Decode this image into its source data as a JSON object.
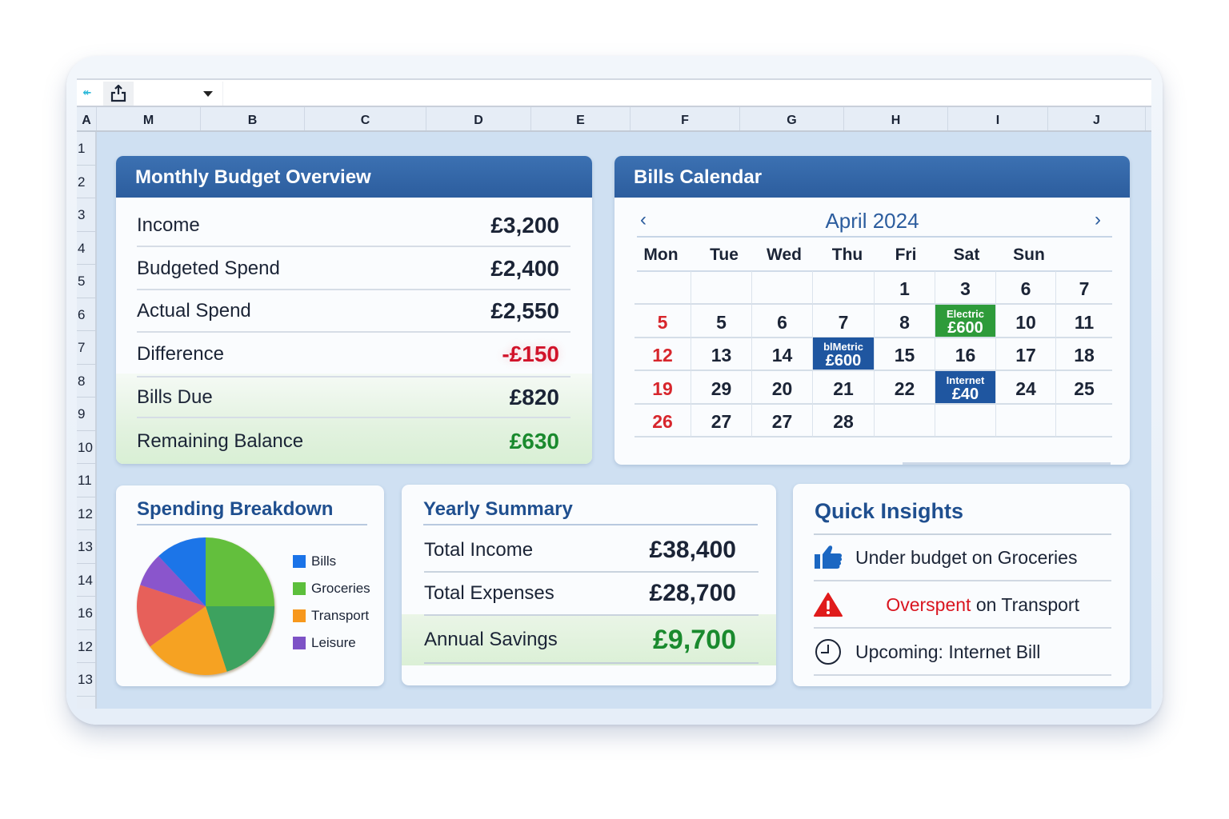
{
  "toolbar": {
    "back_icon": "↞",
    "name_box_value": ""
  },
  "column_headers": [
    "A",
    "M",
    "B",
    "C",
    "D",
    "E",
    "F",
    "G",
    "H",
    "I",
    "J"
  ],
  "row_headers": [
    "1",
    "2",
    "3",
    "4",
    "5",
    "6",
    "7",
    "8",
    "9",
    "10",
    "11",
    "12",
    "13",
    "14",
    "16",
    "12",
    "13"
  ],
  "monthly_overview": {
    "title": "Monthly Budget Overview",
    "rows": [
      {
        "label": "Income",
        "value": "£3,200"
      },
      {
        "label": "Budgeted Spend",
        "value": "£2,400"
      },
      {
        "label": "Actual Spend",
        "value": "£2,550"
      },
      {
        "label": "Difference",
        "value": "-£150"
      },
      {
        "label": "Bills Due",
        "value": "£820"
      },
      {
        "label": "Remaining Balance",
        "value": "£630"
      }
    ]
  },
  "bills_calendar": {
    "title": "Bills Calendar",
    "month_label": "April 2024",
    "prev_label": "‹",
    "next_label": "›",
    "weekdays": [
      "Mon",
      "Tue",
      "Wed",
      "Thu",
      "Fri",
      "Sat",
      "Sun"
    ],
    "weeks": [
      [
        "",
        "",
        "",
        "",
        "1",
        "3",
        "6",
        "7"
      ],
      [
        "5",
        "5",
        "6",
        "7",
        "8",
        "Electric|£600",
        "10",
        "11"
      ],
      [
        "12",
        "13",
        "14",
        "blMetric|£600",
        "15",
        "16",
        "17",
        "18"
      ],
      [
        "19",
        "29",
        "20",
        "21",
        "22",
        "Internet|£40",
        "24",
        "25"
      ],
      [
        "26",
        "27",
        "27",
        "28",
        "",
        "",
        "",
        ""
      ]
    ],
    "events": [
      {
        "name": "Electric",
        "amount": "£600",
        "color": "#2e9b3a"
      },
      {
        "name": "blMetric",
        "amount": "£600",
        "color": "#1f56a0"
      },
      {
        "name": "Internet",
        "amount": "£40",
        "color": "#1f56a0"
      }
    ]
  },
  "spending_breakdown": {
    "title": "Spending Breakdown",
    "legend": [
      {
        "label": "Bills",
        "color": "#1a73e8"
      },
      {
        "label": "Groceries",
        "color": "#5cbf3c"
      },
      {
        "label": "Transport",
        "color": "#f7981d"
      },
      {
        "label": "Leisure",
        "color": "#7d52c6"
      }
    ]
  },
  "chart_data": {
    "type": "pie",
    "title": "Spending Breakdown",
    "categories": [
      "Groceries (light green)",
      "Dark green",
      "Transport",
      "Red",
      "Leisure",
      "Bills"
    ],
    "values": [
      25,
      20,
      20,
      15,
      8,
      12
    ],
    "colors": [
      "#63bf3e",
      "#3ea25e",
      "#f6a223",
      "#e7605a",
      "#8a55cc",
      "#1e74e8"
    ],
    "legend": [
      "Bills",
      "Groceries",
      "Transport",
      "Leisure"
    ],
    "legend_position": "right"
  },
  "yearly_summary": {
    "title": "Yearly Summary",
    "rows": [
      {
        "label": "Total Income",
        "value": "£38,400"
      },
      {
        "label": "Total Expenses",
        "value": "£28,700"
      },
      {
        "label": "Annual Savings",
        "value": "£9,700"
      }
    ]
  },
  "quick_insights": {
    "title": "Quick Insights",
    "items": [
      {
        "icon": "thumbs-up-icon",
        "text": "Under budget on Groceries",
        "highlight": ""
      },
      {
        "icon": "warning-icon",
        "highlight": "Overspent",
        "text": " on Transport"
      },
      {
        "icon": "clock-icon",
        "text": "Upcoming: Internet Bill",
        "highlight": ""
      }
    ]
  },
  "colors": {
    "header_blue": "#2f62a4",
    "title_blue": "#1f4f8f",
    "negative_red": "#d1132a",
    "positive_green": "#1a8a2e",
    "weekend_red": "#d7262c"
  }
}
